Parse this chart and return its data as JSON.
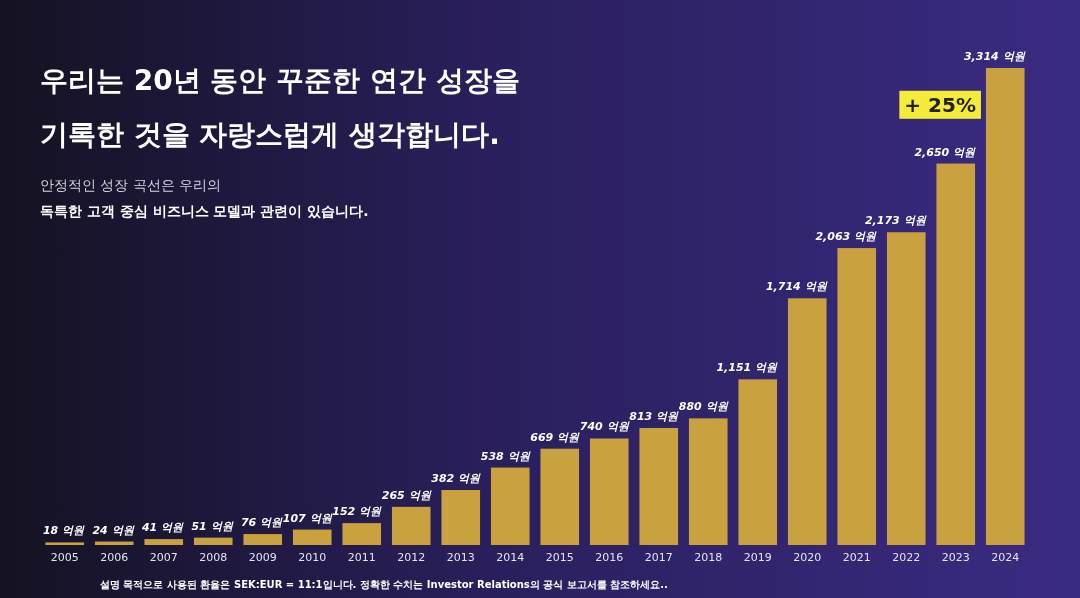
{
  "chart_data": {
    "type": "bar",
    "title": "우리는 20년 동안 꾸준한 연간 성장을\n기록한 것을 자랑스럽게 생각합니다.",
    "subtitle": "안정적인 성장 곡선은 우리의\n독특한 고객 중심 비즈니스 모델과 관련이 있습니다.",
    "categories": [
      "2005",
      "2006",
      "2007",
      "2008",
      "2009",
      "2010",
      "2011",
      "2012",
      "2013",
      "2014",
      "2015",
      "2016",
      "2017",
      "2018",
      "2019",
      "2020",
      "2021",
      "2022",
      "2023",
      "2024"
    ],
    "values": [
      18,
      24,
      41,
      51,
      76,
      107,
      152,
      265,
      382,
      538,
      669,
      740,
      813,
      880,
      1151,
      1714,
      2063,
      2173,
      2650,
      3314
    ],
    "value_labels": [
      "18 억원",
      "24 억원",
      "41 억원",
      "51 억원",
      "76 억원",
      "107 억원",
      "152 억원",
      "265 억원",
      "382 억원",
      "538 억원",
      "669 억원",
      "740 억원",
      "813 억원",
      "880 억원",
      "1,151 억원",
      "1,714 억원",
      "2,063 억원",
      "2,173 억원",
      "2,650 억원",
      "3,314 억원"
    ],
    "color": "#c9a13e",
    "annotations": [
      "+ 25%",
      "설명 목적으로 사용된 환율은 SEK:EUR = 11:1입니다. 정확한 수치는 Investor Relations의 공식 보고서를 참조하세요.."
    ]
  }
}
